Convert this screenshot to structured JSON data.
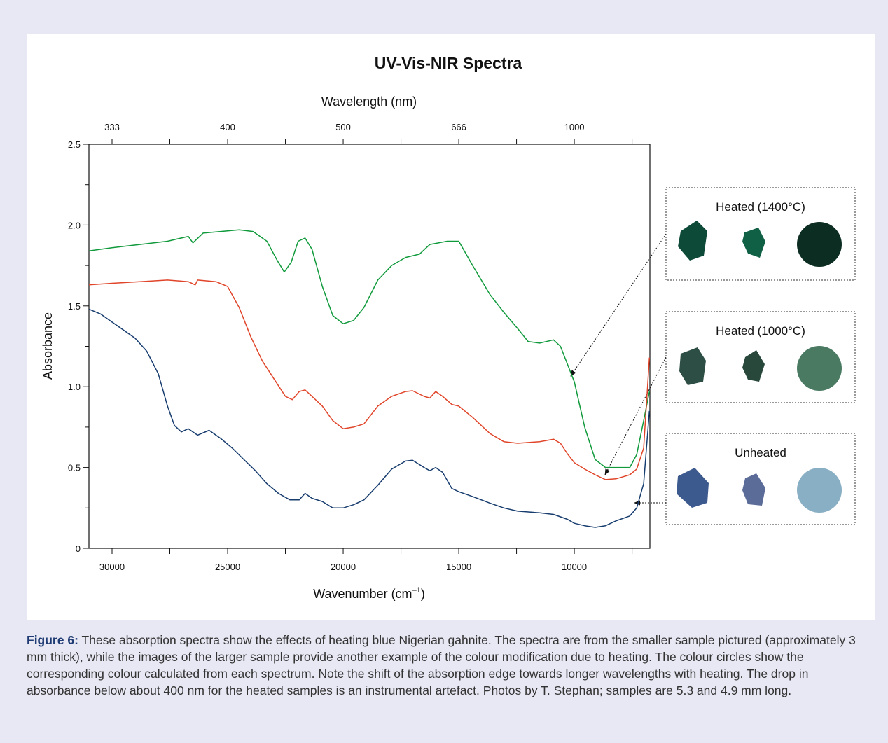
{
  "chart_data": {
    "type": "line",
    "title": "UV-Vis-NIR Spectra",
    "x2label": "Wavelength (nm)",
    "xlabel": [
      "Wavenumber (cm",
      "–1",
      ")"
    ],
    "ylabel": "Absorbance",
    "xlim": [
      31000,
      6730
    ],
    "ylim": [
      0,
      2.5
    ],
    "xticks": [
      30000,
      25000,
      20000,
      15000,
      10000
    ],
    "xminor": [
      27500,
      22500,
      17500,
      12500,
      7500
    ],
    "x2ticks": [
      {
        "value": 30000,
        "label": "333"
      },
      {
        "value": 25000,
        "label": "400"
      },
      {
        "value": 20000,
        "label": "500"
      },
      {
        "value": 15000,
        "label": "666"
      },
      {
        "value": 10000,
        "label": "1000"
      }
    ],
    "yticks": [
      0,
      0.5,
      {
        "value": 1,
        "label": "1.0"
      },
      1.5,
      {
        "value": 2,
        "label": "2.0"
      },
      2.5
    ],
    "yminor": [
      0.25,
      0.75,
      1.25,
      1.75,
      2.25
    ],
    "series": [
      {
        "name": "Heated (1400°C)",
        "color": "#119a3c",
        "swatch": "#0c2d22",
        "x": [
          31000,
          30000,
          28800,
          27600,
          26700,
          26500,
          26060,
          24500,
          23900,
          23300,
          22850,
          22550,
          22250,
          21950,
          21650,
          21350,
          20900,
          20450,
          20000,
          19550,
          19100,
          18500,
          17900,
          17300,
          16700,
          16250,
          15500,
          15000,
          14400,
          13650,
          13050,
          12450,
          12000,
          11500,
          10900,
          10600,
          10300,
          10000,
          9550,
          9100,
          8650,
          8200,
          7600,
          7300,
          7000,
          6750
        ],
        "values": [
          1.84,
          1.86,
          1.88,
          1.9,
          1.93,
          1.89,
          1.95,
          1.97,
          1.96,
          1.9,
          1.78,
          1.71,
          1.77,
          1.9,
          1.92,
          1.85,
          1.62,
          1.44,
          1.39,
          1.41,
          1.49,
          1.66,
          1.75,
          1.8,
          1.82,
          1.88,
          1.9,
          1.9,
          1.75,
          1.57,
          1.46,
          1.36,
          1.28,
          1.27,
          1.29,
          1.25,
          1.14,
          1.03,
          0.75,
          0.55,
          0.5,
          0.5,
          0.5,
          0.58,
          0.79,
          0.97
        ]
      },
      {
        "name": "Heated (1000°C)",
        "color": "#e0452a",
        "swatch": "#4a7a62",
        "x": [
          31000,
          30000,
          28800,
          27600,
          26700,
          26400,
          26300,
          25500,
          25000,
          24500,
          24000,
          23500,
          23000,
          22500,
          22200,
          21900,
          21650,
          21350,
          20900,
          20450,
          20000,
          19550,
          19100,
          18500,
          17900,
          17300,
          17000,
          16500,
          16250,
          16000,
          15700,
          15300,
          15000,
          14400,
          13650,
          13050,
          12450,
          11500,
          10900,
          10600,
          10300,
          10000,
          9550,
          9100,
          8650,
          8200,
          7600,
          7300,
          7000,
          6750
        ],
        "values": [
          1.63,
          1.64,
          1.65,
          1.66,
          1.65,
          1.63,
          1.66,
          1.65,
          1.62,
          1.49,
          1.31,
          1.16,
          1.05,
          0.94,
          0.92,
          0.97,
          0.98,
          0.94,
          0.88,
          0.79,
          0.74,
          0.75,
          0.77,
          0.88,
          0.94,
          0.97,
          0.975,
          0.94,
          0.93,
          0.97,
          0.94,
          0.89,
          0.88,
          0.81,
          0.71,
          0.66,
          0.65,
          0.66,
          0.675,
          0.65,
          0.585,
          0.53,
          0.49,
          0.455,
          0.425,
          0.43,
          0.455,
          0.49,
          0.62,
          1.18
        ]
      },
      {
        "name": "Unheated",
        "color": "#173c6e",
        "swatch": "#89afc4",
        "x": [
          31000,
          30500,
          30000,
          29500,
          29000,
          28500,
          28000,
          27600,
          27300,
          27000,
          26700,
          26300,
          25800,
          25300,
          24800,
          24300,
          23800,
          23300,
          22800,
          22300,
          21900,
          21650,
          21350,
          20900,
          20450,
          20000,
          19550,
          19100,
          18500,
          17900,
          17300,
          17000,
          16500,
          16250,
          16000,
          15700,
          15300,
          15000,
          14400,
          13650,
          13050,
          12450,
          11500,
          10900,
          10300,
          10000,
          9550,
          9100,
          8650,
          8200,
          7600,
          7300,
          7000,
          6750
        ],
        "values": [
          1.48,
          1.45,
          1.4,
          1.35,
          1.3,
          1.22,
          1.08,
          0.88,
          0.76,
          0.72,
          0.74,
          0.7,
          0.73,
          0.68,
          0.62,
          0.55,
          0.48,
          0.4,
          0.34,
          0.3,
          0.3,
          0.34,
          0.31,
          0.29,
          0.25,
          0.25,
          0.27,
          0.3,
          0.39,
          0.49,
          0.54,
          0.545,
          0.5,
          0.48,
          0.5,
          0.47,
          0.37,
          0.35,
          0.32,
          0.28,
          0.25,
          0.23,
          0.22,
          0.21,
          0.18,
          0.155,
          0.14,
          0.13,
          0.14,
          0.17,
          0.2,
          0.25,
          0.4,
          0.85
        ]
      }
    ]
  },
  "caption": {
    "label": "Figure 6:",
    "text": " These absorption spectra show the effects of heating blue Nigerian gahnite. The spectra are from the smaller sample pictured (approximately 3 mm thick), while the images of the larger sample provide another example of the colour modification due to heating. The colour circles show the corresponding colour calculated from each spectrum. Note the shift of the absorption edge towards longer wavelengths with heating. The drop in absorbance below about 400 nm for the heated samples is an instrumental artefact. Photos by T. Stephan; samples are 5.3 and 4.9 mm long."
  }
}
